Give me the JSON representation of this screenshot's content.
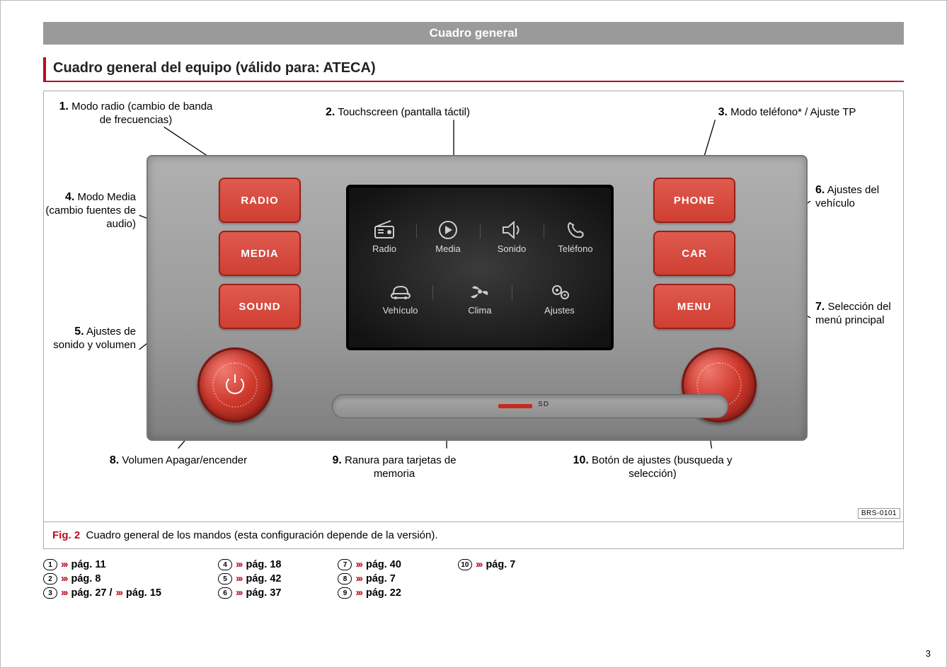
{
  "banner": "Cuadro general",
  "section_title": "Cuadro general del equipo (válido para: ATECA)",
  "callouts": {
    "c1": {
      "num": "1.",
      "text": "Modo radio (cambio de banda de frecuencias)"
    },
    "c2": {
      "num": "2.",
      "text": "Touchscreen (pantalla táctil)"
    },
    "c3": {
      "num": "3.",
      "text": "Modo teléfono* / Ajuste TP"
    },
    "c4": {
      "num": "4.",
      "text": "Modo Media (cambio fuentes de audio)"
    },
    "c5": {
      "num": "5.",
      "text": "Ajustes de sonido y volumen"
    },
    "c6": {
      "num": "6.",
      "text": "Ajustes del vehículo"
    },
    "c7": {
      "num": "7.",
      "text": "Selección del menú principal"
    },
    "c8": {
      "num": "8.",
      "text": "Volumen Apagar/encender"
    },
    "c9": {
      "num": "9.",
      "text": "Ranura para tarjetas de memoria"
    },
    "c10": {
      "num": "10.",
      "text": "Botón de ajustes (busqueda y selección)"
    }
  },
  "buttons": {
    "radio": "RADIO",
    "media": "MEDIA",
    "sound": "SOUND",
    "phone": "PHONE",
    "car": "CAR",
    "menu": "MENU"
  },
  "tiles": {
    "radio": "Radio",
    "media": "Media",
    "sonido": "Sonido",
    "telefono": "Teléfono",
    "vehiculo": "Vehículo",
    "clima": "Clima",
    "ajustes": "Ajustes"
  },
  "sd_label": "SD",
  "caption_label": "Fig. 2",
  "caption_text": "Cuadro general de los mandos (esta configuración depende de la versión).",
  "image_code": "BRS-0101",
  "refs": [
    [
      {
        "n": "1",
        "t": "pág. 11"
      },
      {
        "n": "2",
        "t": "pág. 8"
      },
      {
        "n": "3",
        "t": "pág. 27",
        "t2": "pág. 15"
      }
    ],
    [
      {
        "n": "4",
        "t": "pág. 18"
      },
      {
        "n": "5",
        "t": "pág. 42"
      },
      {
        "n": "6",
        "t": "pág. 37"
      }
    ],
    [
      {
        "n": "7",
        "t": "pág. 40"
      },
      {
        "n": "8",
        "t": "pág. 7"
      },
      {
        "n": "9",
        "t": "pág. 22"
      }
    ],
    [
      {
        "n": "10",
        "t": "pág. 7"
      }
    ]
  ],
  "page_number": "3",
  "colors": {
    "accent": "#ba0c1f",
    "button_fill": "#d6463a",
    "banner": "#9a9a9a"
  }
}
